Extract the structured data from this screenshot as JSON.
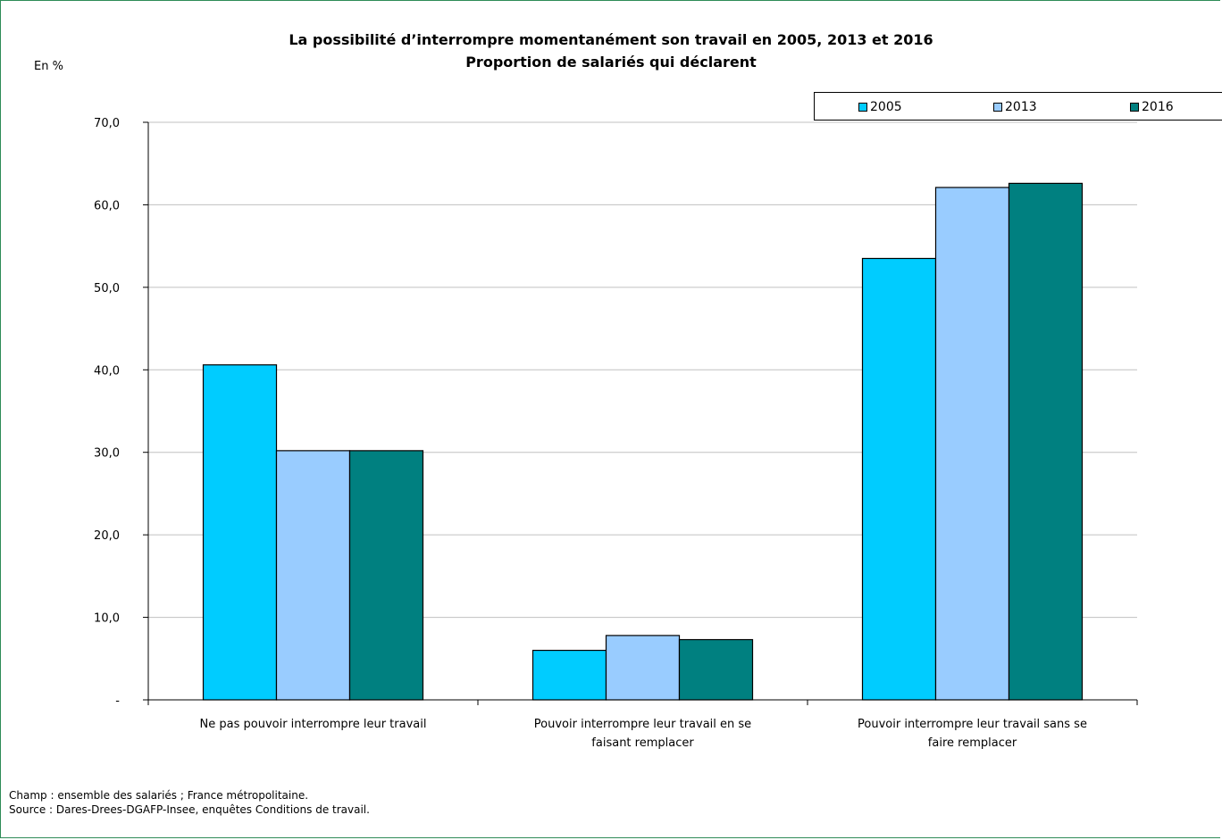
{
  "chart_data": {
    "type": "bar",
    "title": "La possibilité d’interrompre momentanément son travail en 2005, 2013 et 2016",
    "subtitle": "Proportion de salariés qui déclarent",
    "ylabel": "En %",
    "xlabel": "",
    "ylim": [
      0,
      70
    ],
    "yticks": [
      {
        "value": 0,
        "label": "-"
      },
      {
        "value": 10,
        "label": "10,0"
      },
      {
        "value": 20,
        "label": "20,0"
      },
      {
        "value": 30,
        "label": "30,0"
      },
      {
        "value": 40,
        "label": "40,0"
      },
      {
        "value": 50,
        "label": "50,0"
      },
      {
        "value": 60,
        "label": "60,0"
      },
      {
        "value": 70,
        "label": "70,0"
      }
    ],
    "grid": true,
    "legend_position": "top-right",
    "categories": [
      [
        "Ne pas pouvoir interrompre leur travail"
      ],
      [
        "Pouvoir interrompre leur travail en se",
        "faisant remplacer"
      ],
      [
        "Pouvoir interrompre leur travail sans se",
        "faire remplacer"
      ]
    ],
    "series": [
      {
        "name": "2005",
        "color": "#00ccff",
        "values": [
          40.6,
          6.0,
          53.5
        ]
      },
      {
        "name": "2013",
        "color": "#99ccff",
        "values": [
          30.2,
          7.8,
          62.1
        ]
      },
      {
        "name": "2016",
        "color": "#008080",
        "values": [
          30.2,
          7.3,
          62.6
        ]
      }
    ]
  },
  "notes": {
    "champ": "Champ : ensemble des salariés ; France métropolitaine.",
    "source": "Source : Dares-Drees-DGAFP-Insee, enquêtes Conditions de travail."
  }
}
